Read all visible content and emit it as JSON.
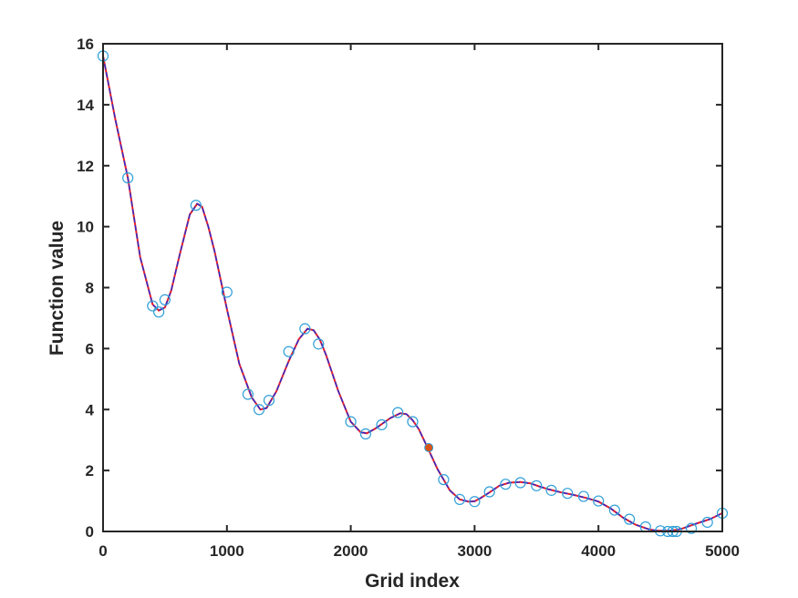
{
  "chart_data": {
    "type": "line",
    "title": "",
    "xlabel": "Grid index",
    "ylabel": "Function value",
    "xlim": [
      0,
      5000
    ],
    "ylim": [
      0,
      16
    ],
    "xticks": [
      0,
      1000,
      2000,
      3000,
      4000,
      5000
    ],
    "yticks": [
      0,
      2,
      4,
      6,
      8,
      10,
      12,
      14,
      16
    ],
    "grid": false,
    "legend": "none",
    "colors": {
      "curve": "#e8202a",
      "overlay_curve": "#2a2ad0",
      "markers": "#2f9fd8",
      "highlight": "#d95319",
      "axes": "#262626"
    },
    "series": [
      {
        "type": "line",
        "x": [
          0,
          100,
          200,
          300,
          400,
          450,
          500,
          550,
          620,
          700,
          760,
          800,
          850,
          900,
          1000,
          1100,
          1200,
          1270,
          1320,
          1400,
          1500,
          1580,
          1650,
          1700,
          1750,
          1800,
          1900,
          2000,
          2080,
          2130,
          2200,
          2260,
          2320,
          2400,
          2450,
          2500,
          2550,
          2620,
          2700,
          2800,
          2880,
          2950,
          3000,
          3050,
          3120,
          3200,
          3280,
          3370,
          3450,
          3520,
          3600,
          3700,
          3800,
          3900,
          4000,
          4100,
          4200,
          4300,
          4400,
          4460,
          4520,
          4580,
          4630,
          4680,
          4750,
          4820,
          4900,
          5000
        ],
        "y": [
          15.6,
          13.5,
          11.6,
          9.0,
          7.45,
          7.25,
          7.35,
          7.9,
          9.1,
          10.4,
          10.75,
          10.65,
          10.0,
          9.2,
          7.3,
          5.5,
          4.4,
          4.0,
          4.05,
          4.6,
          5.6,
          6.3,
          6.65,
          6.6,
          6.3,
          5.8,
          4.6,
          3.6,
          3.25,
          3.22,
          3.38,
          3.55,
          3.72,
          3.88,
          3.85,
          3.65,
          3.35,
          2.75,
          2.05,
          1.35,
          1.05,
          0.98,
          0.99,
          1.1,
          1.28,
          1.5,
          1.6,
          1.62,
          1.58,
          1.48,
          1.38,
          1.28,
          1.2,
          1.1,
          0.98,
          0.75,
          0.45,
          0.22,
          0.08,
          0.03,
          0.02,
          0.03,
          0.05,
          0.1,
          0.2,
          0.3,
          0.4,
          0.6
        ]
      },
      {
        "type": "scatter",
        "marker": "open-circle",
        "x": [
          0,
          200,
          400,
          450,
          500,
          750,
          1000,
          1170,
          1260,
          1340,
          1500,
          1630,
          1740,
          2000,
          2120,
          2250,
          2380,
          2500,
          2750,
          2880,
          3000,
          3120,
          3250,
          3370,
          3500,
          3620,
          3750,
          3880,
          4000,
          4130,
          4250,
          4380,
          4500,
          4560,
          4600,
          4630,
          4750,
          4880,
          5000
        ],
        "y": [
          15.6,
          11.6,
          7.4,
          7.2,
          7.6,
          10.7,
          7.85,
          4.5,
          4.0,
          4.3,
          5.9,
          6.65,
          6.15,
          3.6,
          3.2,
          3.5,
          3.9,
          3.6,
          1.7,
          1.05,
          0.98,
          1.3,
          1.55,
          1.6,
          1.5,
          1.35,
          1.25,
          1.15,
          1.0,
          0.7,
          0.4,
          0.15,
          0.02,
          0.0,
          0.0,
          0.0,
          0.1,
          0.3,
          0.6
        ]
      },
      {
        "type": "point",
        "marker": "filled-circle",
        "x": [
          2630
        ],
        "y": [
          2.75
        ]
      }
    ]
  }
}
